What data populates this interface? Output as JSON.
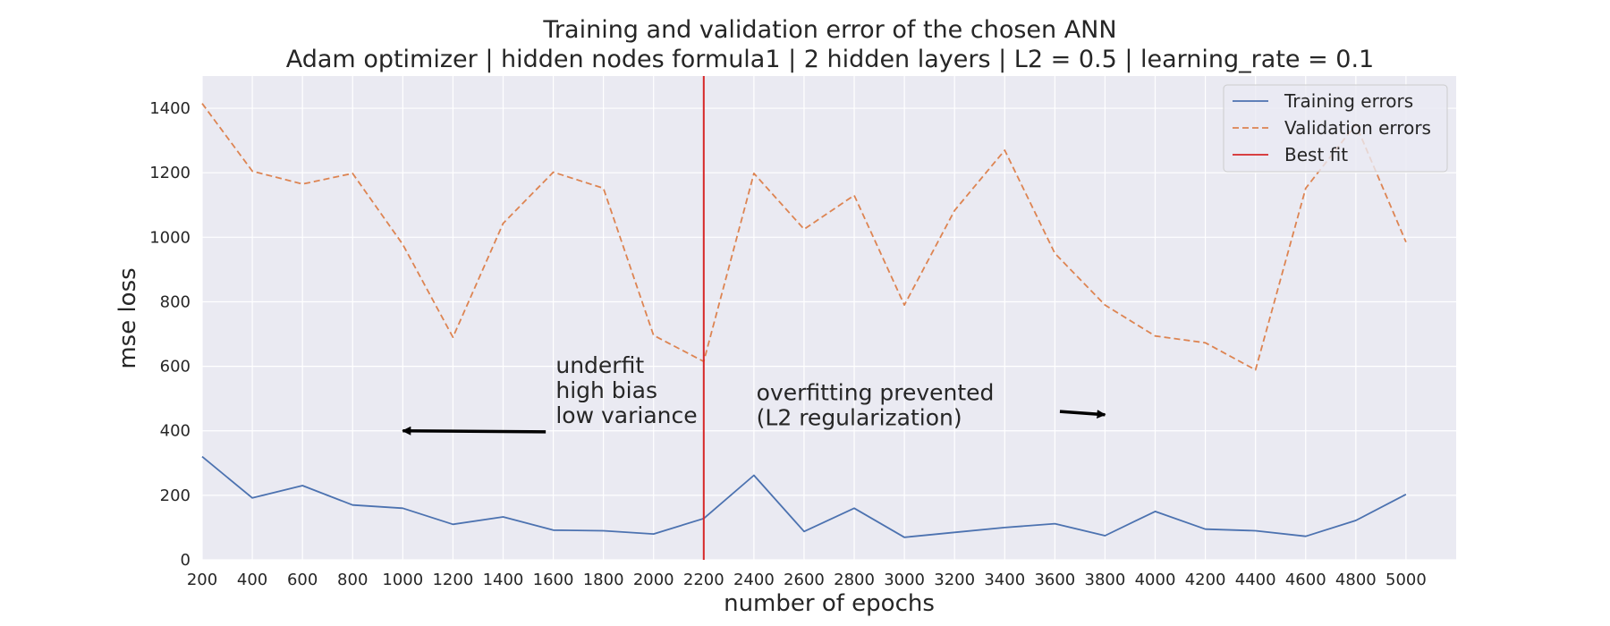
{
  "chart_data": {
    "type": "line",
    "title": "Training and validation error of the chosen ANN",
    "subtitle": "Adam optimizer | hidden nodes formula1 | 2 hidden layers | L2 = 0.5 | learning_rate = 0.1",
    "xlabel": "number of epochs",
    "ylabel": "mse loss",
    "xlim": [
      200,
      5200
    ],
    "ylim": [
      0,
      1500
    ],
    "xticks": [
      200,
      400,
      600,
      800,
      1000,
      1200,
      1400,
      1600,
      1800,
      2000,
      2200,
      2400,
      2600,
      2800,
      3000,
      3200,
      3400,
      3600,
      3800,
      4000,
      4200,
      4400,
      4600,
      4800,
      5000
    ],
    "yticks": [
      0,
      200,
      400,
      600,
      800,
      1000,
      1200,
      1400
    ],
    "grid": true,
    "legend_position": "top-right",
    "x": [
      200,
      400,
      600,
      800,
      1000,
      1200,
      1400,
      1600,
      1800,
      2000,
      2200,
      2400,
      2600,
      2800,
      3000,
      3200,
      3400,
      3600,
      3800,
      4000,
      4200,
      4400,
      4600,
      4800,
      5000
    ],
    "series": [
      {
        "name": "Training errors",
        "style": "solid",
        "color": "#4c72b0",
        "values": [
          320,
          192,
          230,
          170,
          160,
          110,
          133,
          92,
          90,
          80,
          128,
          262,
          88,
          160,
          70,
          85,
          100,
          112,
          75,
          150,
          95,
          90,
          73,
          122,
          203
        ]
      },
      {
        "name": "Validation errors",
        "style": "dashed",
        "color": "#dd8452",
        "values": [
          1415,
          1205,
          1165,
          1198,
          978,
          690,
          1043,
          1202,
          1152,
          696,
          615,
          1198,
          1025,
          1130,
          790,
          1083,
          1270,
          950,
          790,
          694,
          673,
          589,
          1152,
          1350,
          985
        ]
      }
    ],
    "vlines": [
      {
        "name": "Best fit",
        "x": 2200,
        "color": "#d62728"
      }
    ],
    "annotations": [
      {
        "lines": [
          "underfit",
          "high bias",
          "low variance"
        ],
        "text_at": [
          1610,
          580
        ],
        "arrow_from": [
          1570,
          397
        ],
        "arrow_to": [
          1000,
          400
        ]
      },
      {
        "lines": [
          "overfitting prevented",
          "(L2 regularization)"
        ],
        "text_at": [
          2410,
          495
        ],
        "arrow_from": [
          3620,
          460
        ],
        "arrow_to": [
          3800,
          450
        ]
      }
    ]
  }
}
